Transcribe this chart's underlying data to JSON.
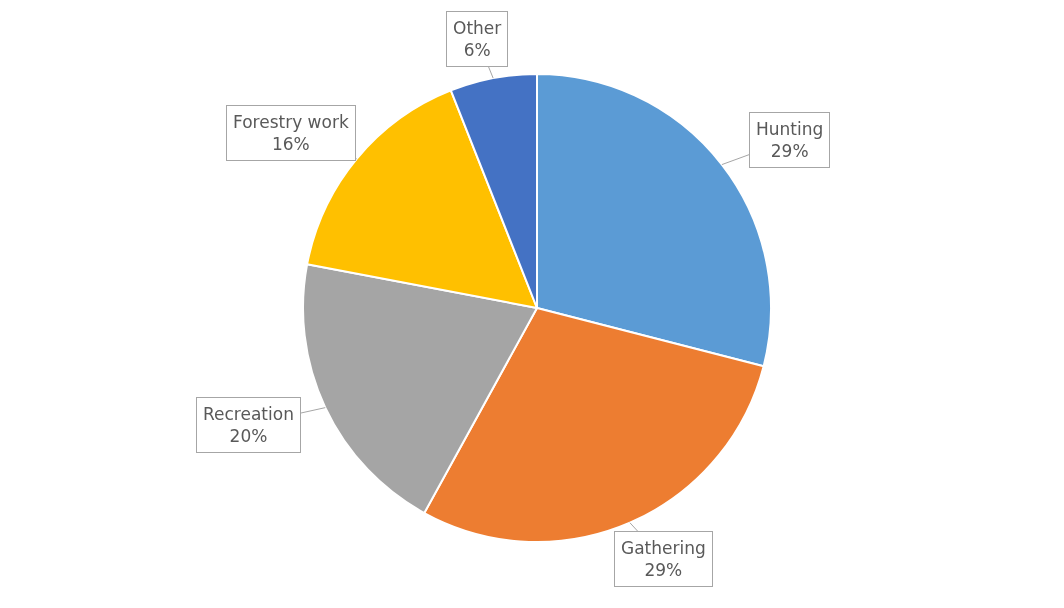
{
  "chart_data": {
    "type": "pie",
    "categories": [
      "Hunting",
      "Gathering",
      "Recreation",
      "Forestry work",
      "Other"
    ],
    "values": [
      29,
      29,
      20,
      16,
      6
    ],
    "value_labels": [
      "29%",
      "29%",
      "20%",
      "16%",
      "6%"
    ],
    "colors": [
      "#5b9bd5",
      "#ed7d31",
      "#a5a5a5",
      "#ffc000",
      "#4472c4"
    ],
    "legend": false
  }
}
